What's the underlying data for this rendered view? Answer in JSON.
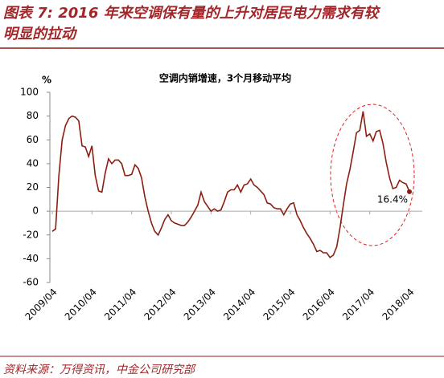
{
  "page_title": [
    "图表 7: 2016 年来空调保有量的上升对居民电力需求有较",
    "明显的拉动"
  ],
  "source": "资料来源：万得资讯，中金公司研究部",
  "chart_data": {
    "type": "line",
    "title": "空调内销增速，3个月移动平均",
    "y_label": "%",
    "categories": [
      "2009/04",
      null,
      null,
      null,
      null,
      null,
      null,
      null,
      null,
      null,
      null,
      null,
      "2010/04",
      null,
      null,
      null,
      null,
      null,
      null,
      null,
      null,
      null,
      null,
      null,
      "2011/04",
      null,
      null,
      null,
      null,
      null,
      null,
      null,
      null,
      null,
      null,
      null,
      "2012/04",
      null,
      null,
      null,
      null,
      null,
      null,
      null,
      null,
      null,
      null,
      null,
      "2013/04",
      null,
      null,
      null,
      null,
      null,
      null,
      null,
      null,
      null,
      null,
      null,
      "2014/04",
      null,
      null,
      null,
      null,
      null,
      null,
      null,
      null,
      null,
      null,
      null,
      "2015/04",
      null,
      null,
      null,
      null,
      null,
      null,
      null,
      null,
      null,
      null,
      null,
      "2016/04",
      null,
      null,
      null,
      null,
      null,
      null,
      null,
      null,
      null,
      null,
      null,
      "2017/04",
      null,
      null,
      null,
      null,
      null,
      null,
      null,
      null,
      null,
      null,
      null,
      "2018/04"
    ],
    "values": [
      -17,
      -15,
      30,
      60,
      72,
      78,
      80,
      79,
      76,
      55,
      54,
      46,
      55,
      30,
      17,
      16,
      32,
      44,
      40,
      43,
      43,
      40,
      30,
      30,
      31,
      39,
      36,
      28,
      12,
      0,
      -10,
      -17,
      -20,
      -14,
      -7,
      -3,
      -8,
      -10,
      -11,
      -12,
      -12,
      -9,
      -5,
      0,
      5,
      16,
      8,
      4,
      0,
      2,
      0,
      1,
      8,
      16,
      18,
      18,
      22,
      16,
      22,
      23,
      27,
      22,
      20,
      17,
      14,
      7,
      6,
      3,
      2,
      2,
      -3,
      2,
      6,
      7,
      -3,
      -8,
      -14,
      -19,
      -23,
      -28,
      -34,
      -33,
      -35,
      -35,
      -39,
      -37,
      -30,
      -14,
      5,
      23,
      35,
      50,
      66,
      68,
      84,
      63,
      65,
      59,
      67,
      68,
      57,
      41,
      28,
      19,
      20,
      26,
      24,
      23,
      16.4
    ],
    "value_labels": [
      null,
      null,
      null,
      null,
      null,
      null,
      null,
      null,
      null,
      null,
      null,
      null,
      null,
      null,
      null,
      null,
      null,
      null,
      null,
      null,
      null,
      null,
      null,
      null,
      null,
      null,
      null,
      null,
      null,
      null,
      null,
      null,
      null,
      null,
      null,
      null,
      null,
      null,
      null,
      null,
      null,
      null,
      null,
      null,
      null,
      null,
      null,
      null,
      null,
      null,
      null,
      null,
      null,
      null,
      null,
      null,
      null,
      null,
      null,
      null,
      null,
      null,
      null,
      null,
      null,
      null,
      null,
      null,
      null,
      null,
      null,
      null,
      null,
      null,
      null,
      null,
      null,
      null,
      null,
      null,
      null,
      null,
      null,
      null,
      null,
      null,
      null,
      null,
      null,
      null,
      null,
      null,
      null,
      null,
      null,
      null,
      null,
      null,
      null,
      null,
      null,
      null,
      null,
      null,
      null,
      null,
      null,
      null,
      "16.4%"
    ],
    "color": "#8b1e12",
    "ylim": [
      -60,
      100
    ],
    "yticks": [
      -60,
      -40,
      -20,
      0,
      20,
      40,
      60,
      80,
      100
    ],
    "grid": false
  }
}
